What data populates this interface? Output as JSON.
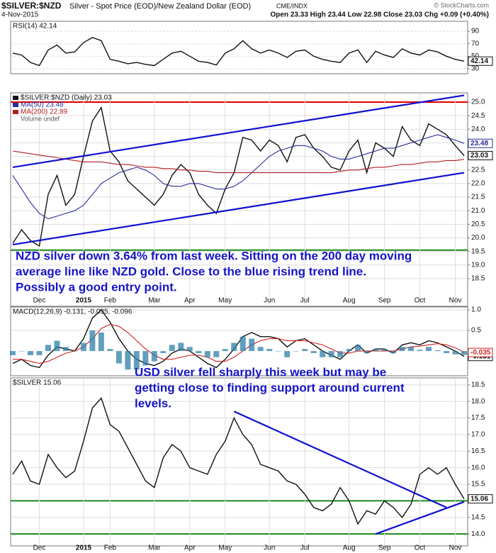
{
  "header": {
    "symbol": "$SILVER:$NZD",
    "description": "Silver - Spot Price (EOD)/New Zealand Dollar (EOD)",
    "exchange": "CME/INDX",
    "date": "4-Nov-2015",
    "quote": "Open 23.33 High 23.44 Low 22.98 Close 23.03 Chg +0.09 (+0.40%)",
    "credit": "© StockCharts.com"
  },
  "chart_data": [
    {
      "type": "line",
      "title": "RSI(14) 42.14",
      "ylim": [
        22,
        106
      ],
      "yticks": [
        30,
        50,
        70,
        90
      ],
      "series": [
        {
          "name": "RSI(14)",
          "color": "#111111",
          "tag": true,
          "values": [
            55,
            52,
            40,
            35,
            60,
            68,
            55,
            57,
            72,
            80,
            75,
            45,
            42,
            38,
            40,
            37,
            35,
            45,
            55,
            58,
            50,
            42,
            40,
            36,
            55,
            62,
            75,
            62,
            55,
            60,
            55,
            48,
            58,
            60,
            50,
            45,
            42,
            40,
            55,
            60,
            40,
            58,
            52,
            48,
            62,
            55,
            52,
            60,
            57,
            50,
            45,
            42.14
          ]
        }
      ]
    },
    {
      "type": "line",
      "ylim": [
        17.48,
        25.34
      ],
      "yticks": [
        18.5,
        {
          "value": 19.0,
          "label": "19.0"
        },
        19.5,
        {
          "value": 20.0,
          "label": "20.0"
        },
        20.5,
        {
          "value": 21.0,
          "label": "21.0"
        },
        21.5,
        {
          "value": 22.0,
          "label": "22.0"
        },
        22.5,
        {
          "value": 23.0,
          "label": "23.0"
        },
        23.5,
        {
          "value": 24.0,
          "label": "24.0"
        },
        24.5,
        {
          "value": 25.0,
          "label": "25.0"
        }
      ],
      "categories": [
        null,
        null,
        null,
        "Dec",
        null,
        null,
        null,
        null,
        "2015",
        null,
        null,
        "Feb",
        null,
        null,
        null,
        null,
        "Mar",
        null,
        null,
        null,
        "Apr",
        null,
        null,
        null,
        "May",
        null,
        null,
        null,
        null,
        "Jun",
        null,
        null,
        null,
        "Jul",
        null,
        null,
        null,
        null,
        "Aug",
        null,
        null,
        null,
        "Sep",
        null,
        null,
        null,
        "Oct",
        null,
        null,
        null,
        "Nov",
        null
      ],
      "series": [
        {
          "name": "$SILVER:$NZD (Daily) 23.03",
          "color": "#111111",
          "tag": true,
          "values": [
            19.8,
            20.3,
            19.9,
            19.7,
            21.6,
            22.3,
            21.2,
            21.6,
            23.0,
            24.3,
            24.8,
            23.2,
            22.8,
            22.1,
            21.8,
            21.5,
            21.2,
            21.6,
            22.3,
            22.7,
            22.4,
            21.6,
            21.2,
            20.9,
            21.8,
            22.4,
            23.7,
            23.6,
            23.2,
            23.6,
            23.4,
            22.8,
            23.7,
            23.8,
            23.3,
            23.0,
            22.6,
            22.5,
            23.2,
            23.6,
            22.4,
            23.5,
            23.3,
            23.0,
            24.1,
            23.6,
            23.4,
            24.2,
            24.0,
            23.8,
            23.4,
            23.03
          ]
        },
        {
          "name": "MA(50) 23.48",
          "color": "#2b2b9c",
          "tag": true,
          "values": [
            22.3,
            21.8,
            21.3,
            20.9,
            20.7,
            20.8,
            20.9,
            21.0,
            21.2,
            21.6,
            22.0,
            22.2,
            22.4,
            22.5,
            22.6,
            22.5,
            22.3,
            22.0,
            21.9,
            21.9,
            22.0,
            22.0,
            21.9,
            21.8,
            21.8,
            21.9,
            22.1,
            22.4,
            22.7,
            23.0,
            23.2,
            23.3,
            23.4,
            23.4,
            23.3,
            23.2,
            23.0,
            22.9,
            22.9,
            23.0,
            23.1,
            23.2,
            23.3,
            23.3,
            23.4,
            23.5,
            23.6,
            23.7,
            23.8,
            23.7,
            23.6,
            23.48
          ]
        },
        {
          "name": "MA(200) 22.89",
          "color": "#b01e1e",
          "values": [
            23.2,
            23.15,
            23.1,
            23.05,
            23.0,
            22.95,
            22.9,
            22.85,
            22.8,
            22.8,
            22.8,
            22.75,
            22.7,
            22.7,
            22.65,
            22.6,
            22.6,
            22.55,
            22.55,
            22.5,
            22.5,
            22.45,
            22.45,
            22.4,
            22.4,
            22.4,
            22.4,
            22.4,
            22.4,
            22.4,
            22.4,
            22.4,
            22.4,
            22.4,
            22.4,
            22.4,
            22.4,
            22.45,
            22.5,
            22.5,
            22.55,
            22.6,
            22.6,
            22.65,
            22.7,
            22.7,
            22.75,
            22.8,
            22.8,
            22.85,
            22.85,
            22.89
          ]
        }
      ],
      "volume_label": "Volume undef",
      "hlines": [
        {
          "value": 25.0,
          "color": "#e00000"
        },
        {
          "value": 19.55,
          "color": "#1a8a1a"
        }
      ],
      "trendlines": [
        {
          "color": "#1010d0",
          "points": [
            [
              0,
              22.6
            ],
            [
              51,
              25.25
            ]
          ]
        },
        {
          "color": "#1010d0",
          "points": [
            [
              0,
              19.75
            ],
            [
              51,
              22.4
            ]
          ]
        }
      ],
      "annotation": [
        "NZD silver down 3.64% from last week. Sitting on the 200 day moving",
        "average line like NZD gold.  Close to the blue rising trend line.",
        "Possibly a good entry point."
      ]
    },
    {
      "type": "line",
      "title": "MACD(12,26,9) -0.131, -0.035, -0.096",
      "ylim": [
        -0.6,
        1.07
      ],
      "yticks": [
        0.5,
        {
          "value": 1.0,
          "label": "1.0"
        }
      ],
      "series": [
        {
          "name": "MACD",
          "color": "#111111",
          "tag": true,
          "values": [
            -0.3,
            -0.2,
            -0.35,
            -0.4,
            -0.1,
            0.1,
            0.05,
            0.0,
            0.3,
            0.8,
            1.0,
            0.7,
            0.3,
            0.0,
            -0.2,
            -0.3,
            -0.35,
            -0.25,
            -0.05,
            0.05,
            0.0,
            -0.15,
            -0.3,
            -0.4,
            -0.2,
            0.05,
            0.35,
            0.45,
            0.35,
            0.35,
            0.3,
            0.1,
            0.25,
            0.3,
            0.15,
            0.0,
            -0.1,
            -0.2,
            0.0,
            0.15,
            -0.05,
            0.05,
            0.05,
            -0.05,
            0.15,
            0.2,
            0.15,
            0.25,
            0.2,
            0.1,
            0.0,
            -0.131
          ]
        },
        {
          "name": "Signal",
          "color": "#d02020",
          "tag": true,
          "values": [
            -0.2,
            -0.2,
            -0.25,
            -0.3,
            -0.25,
            -0.15,
            -0.05,
            0.0,
            0.1,
            0.3,
            0.55,
            0.65,
            0.6,
            0.45,
            0.25,
            0.05,
            -0.1,
            -0.2,
            -0.2,
            -0.15,
            -0.1,
            -0.1,
            -0.15,
            -0.25,
            -0.25,
            -0.15,
            0.0,
            0.15,
            0.25,
            0.3,
            0.3,
            0.25,
            0.25,
            0.25,
            0.2,
            0.15,
            0.05,
            -0.05,
            -0.05,
            0.0,
            0.0,
            0.0,
            0.0,
            0.0,
            0.05,
            0.1,
            0.12,
            0.15,
            0.18,
            0.15,
            0.08,
            -0.035
          ]
        },
        {
          "name": "Histogram",
          "type": "bar",
          "color": "#2e7fa8",
          "values": [
            -0.1,
            0.0,
            -0.1,
            -0.1,
            0.15,
            0.25,
            0.1,
            0.0,
            0.2,
            0.5,
            0.45,
            0.05,
            -0.3,
            -0.45,
            -0.45,
            -0.35,
            -0.25,
            -0.05,
            0.15,
            0.2,
            0.1,
            -0.05,
            -0.15,
            -0.15,
            0.05,
            0.2,
            0.35,
            0.3,
            0.1,
            0.05,
            0.0,
            -0.15,
            0.0,
            0.05,
            -0.05,
            -0.15,
            -0.15,
            -0.15,
            0.05,
            0.15,
            -0.05,
            0.05,
            0.05,
            -0.05,
            0.1,
            0.1,
            0.03,
            0.1,
            0.02,
            -0.05,
            -0.08,
            -0.096
          ]
        }
      ]
    },
    {
      "type": "line",
      "title": "$SILVER 15.06",
      "ylim": [
        13.64,
        18.71
      ],
      "yticks": [
        {
          "value": 14.0,
          "label": "14.0"
        },
        14.5,
        {
          "value": 15.0,
          "label": "15.0"
        },
        15.5,
        {
          "value": 16.0,
          "label": "16.0"
        },
        16.5,
        {
          "value": 17.0,
          "label": "17.0"
        },
        17.5,
        {
          "value": 18.0,
          "label": "18.0"
        },
        18.5
      ],
      "categories": [
        null,
        null,
        null,
        "Dec",
        null,
        null,
        null,
        null,
        "2015",
        null,
        null,
        "Feb",
        null,
        null,
        null,
        null,
        "Mar",
        null,
        null,
        null,
        "Apr",
        null,
        null,
        null,
        "May",
        null,
        null,
        null,
        null,
        "Jun",
        null,
        null,
        null,
        "Jul",
        null,
        null,
        null,
        null,
        "Aug",
        null,
        null,
        null,
        "Sep",
        null,
        null,
        null,
        "Oct",
        null,
        null,
        null,
        "Nov",
        null
      ],
      "series": [
        {
          "name": "$SILVER",
          "color": "#111111",
          "tag": true,
          "values": [
            15.8,
            16.2,
            15.6,
            15.5,
            16.4,
            16.0,
            15.7,
            15.9,
            16.8,
            17.8,
            18.1,
            17.3,
            17.1,
            16.6,
            16.1,
            15.6,
            15.4,
            16.3,
            16.7,
            16.5,
            16.0,
            15.9,
            15.8,
            16.4,
            16.8,
            17.5,
            17.0,
            16.7,
            16.1,
            16.0,
            15.9,
            15.6,
            15.5,
            15.2,
            14.8,
            14.7,
            14.9,
            15.4,
            15.0,
            14.3,
            14.7,
            14.6,
            15.0,
            14.8,
            14.5,
            14.9,
            15.8,
            16.0,
            15.8,
            16.0,
            15.5,
            15.06
          ]
        }
      ],
      "hlines": [
        {
          "value": 15.0,
          "color": "#1a8a1a"
        },
        {
          "value": 14.0,
          "color": "#1a8a1a"
        }
      ],
      "trendlines": [
        {
          "color": "#1010d0",
          "points": [
            [
              25,
              17.7
            ],
            [
              49,
              14.8
            ]
          ]
        },
        {
          "color": "#1010d0",
          "points": [
            [
              41,
              14.0
            ],
            [
              51,
              14.97
            ]
          ]
        }
      ],
      "annotation": [
        "USD silver fell sharply this week but may be",
        "getting close to finding support around current",
        "levels."
      ]
    }
  ]
}
